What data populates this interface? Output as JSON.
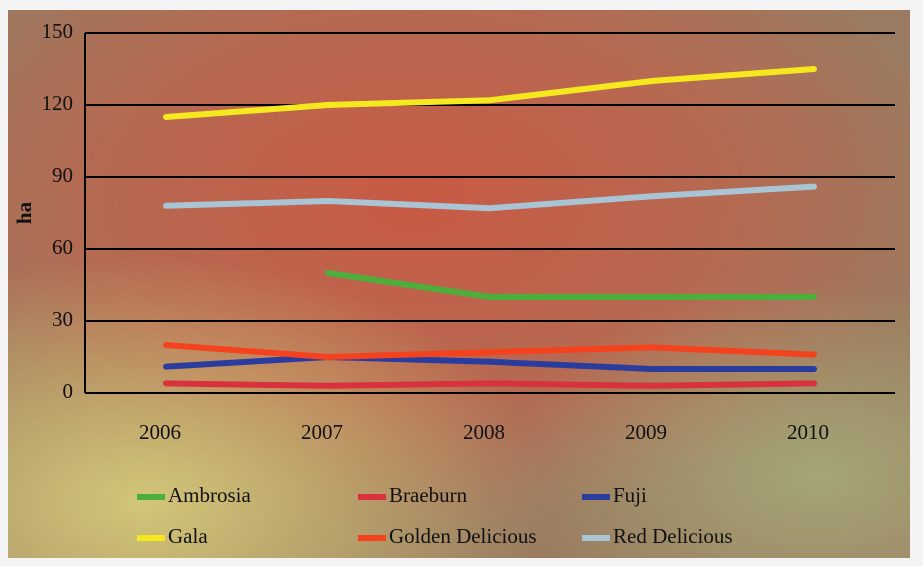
{
  "chart_data": {
    "type": "line",
    "ylabel": "ha",
    "categories": [
      "2006",
      "2007",
      "2008",
      "2009",
      "2010"
    ],
    "series": [
      {
        "name": "Ambrosia",
        "color": "#4caf3c",
        "values": [
          null,
          50,
          40,
          40,
          40
        ]
      },
      {
        "name": "Braeburn",
        "color": "#d8323c",
        "values": [
          4,
          3,
          4,
          3,
          4
        ]
      },
      {
        "name": "Fuji",
        "color": "#2a3d9e",
        "values": [
          11,
          15,
          13,
          10,
          10
        ]
      },
      {
        "name": "Gala",
        "color": "#f5e81e",
        "values": [
          115,
          120,
          122,
          130,
          135
        ]
      },
      {
        "name": "Golden Delicious",
        "color": "#f5421e",
        "values": [
          20,
          15,
          17,
          19,
          16
        ]
      },
      {
        "name": "Red Delicious",
        "color": "#a9c4d4",
        "values": [
          78,
          80,
          77,
          82,
          86
        ]
      }
    ],
    "ylim": [
      0,
      150
    ],
    "yticks": [
      0,
      30,
      60,
      90,
      120,
      150
    ],
    "grid": true,
    "legend": "bottom"
  }
}
